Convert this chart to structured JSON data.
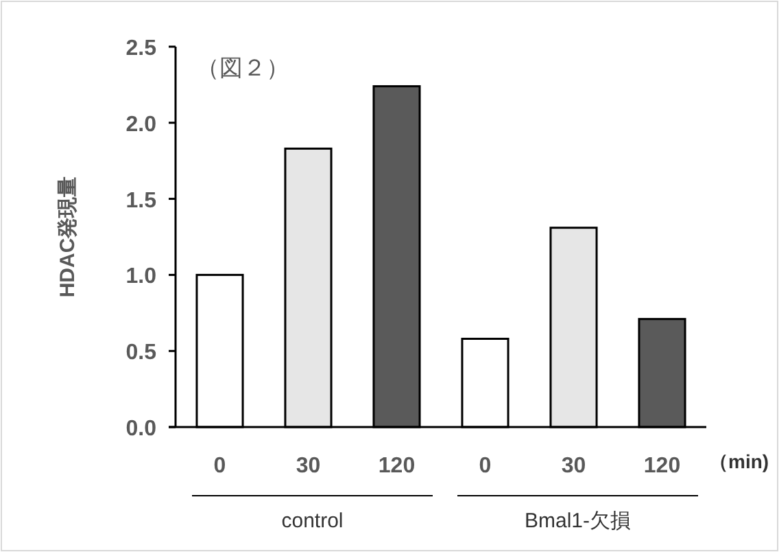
{
  "chart_data": {
    "type": "bar",
    "ylabel": "HDAC発現量",
    "categories": [
      "0",
      "30",
      "120",
      "0",
      "30",
      "120"
    ],
    "values": [
      1.0,
      1.83,
      2.24,
      0.58,
      1.31,
      0.71
    ],
    "colors": [
      "#ffffff",
      "#e6e6e6",
      "#5a5a5a",
      "#ffffff",
      "#e6e6e6",
      "#5a5a5a"
    ],
    "ylim": [
      0,
      2.5
    ],
    "yticks": [
      {
        "value": 0,
        "label": "0.0"
      },
      {
        "value": 0.5,
        "label": "0.5"
      },
      {
        "value": 1,
        "label": "1.0"
      },
      {
        "value": 1.5,
        "label": "1.5"
      },
      {
        "value": 2,
        "label": "2.0"
      },
      {
        "value": 2.5,
        "label": "2.5"
      }
    ],
    "annotations": [
      "（図２）",
      "（min)",
      "control",
      "Bmal1-欠損"
    ]
  }
}
